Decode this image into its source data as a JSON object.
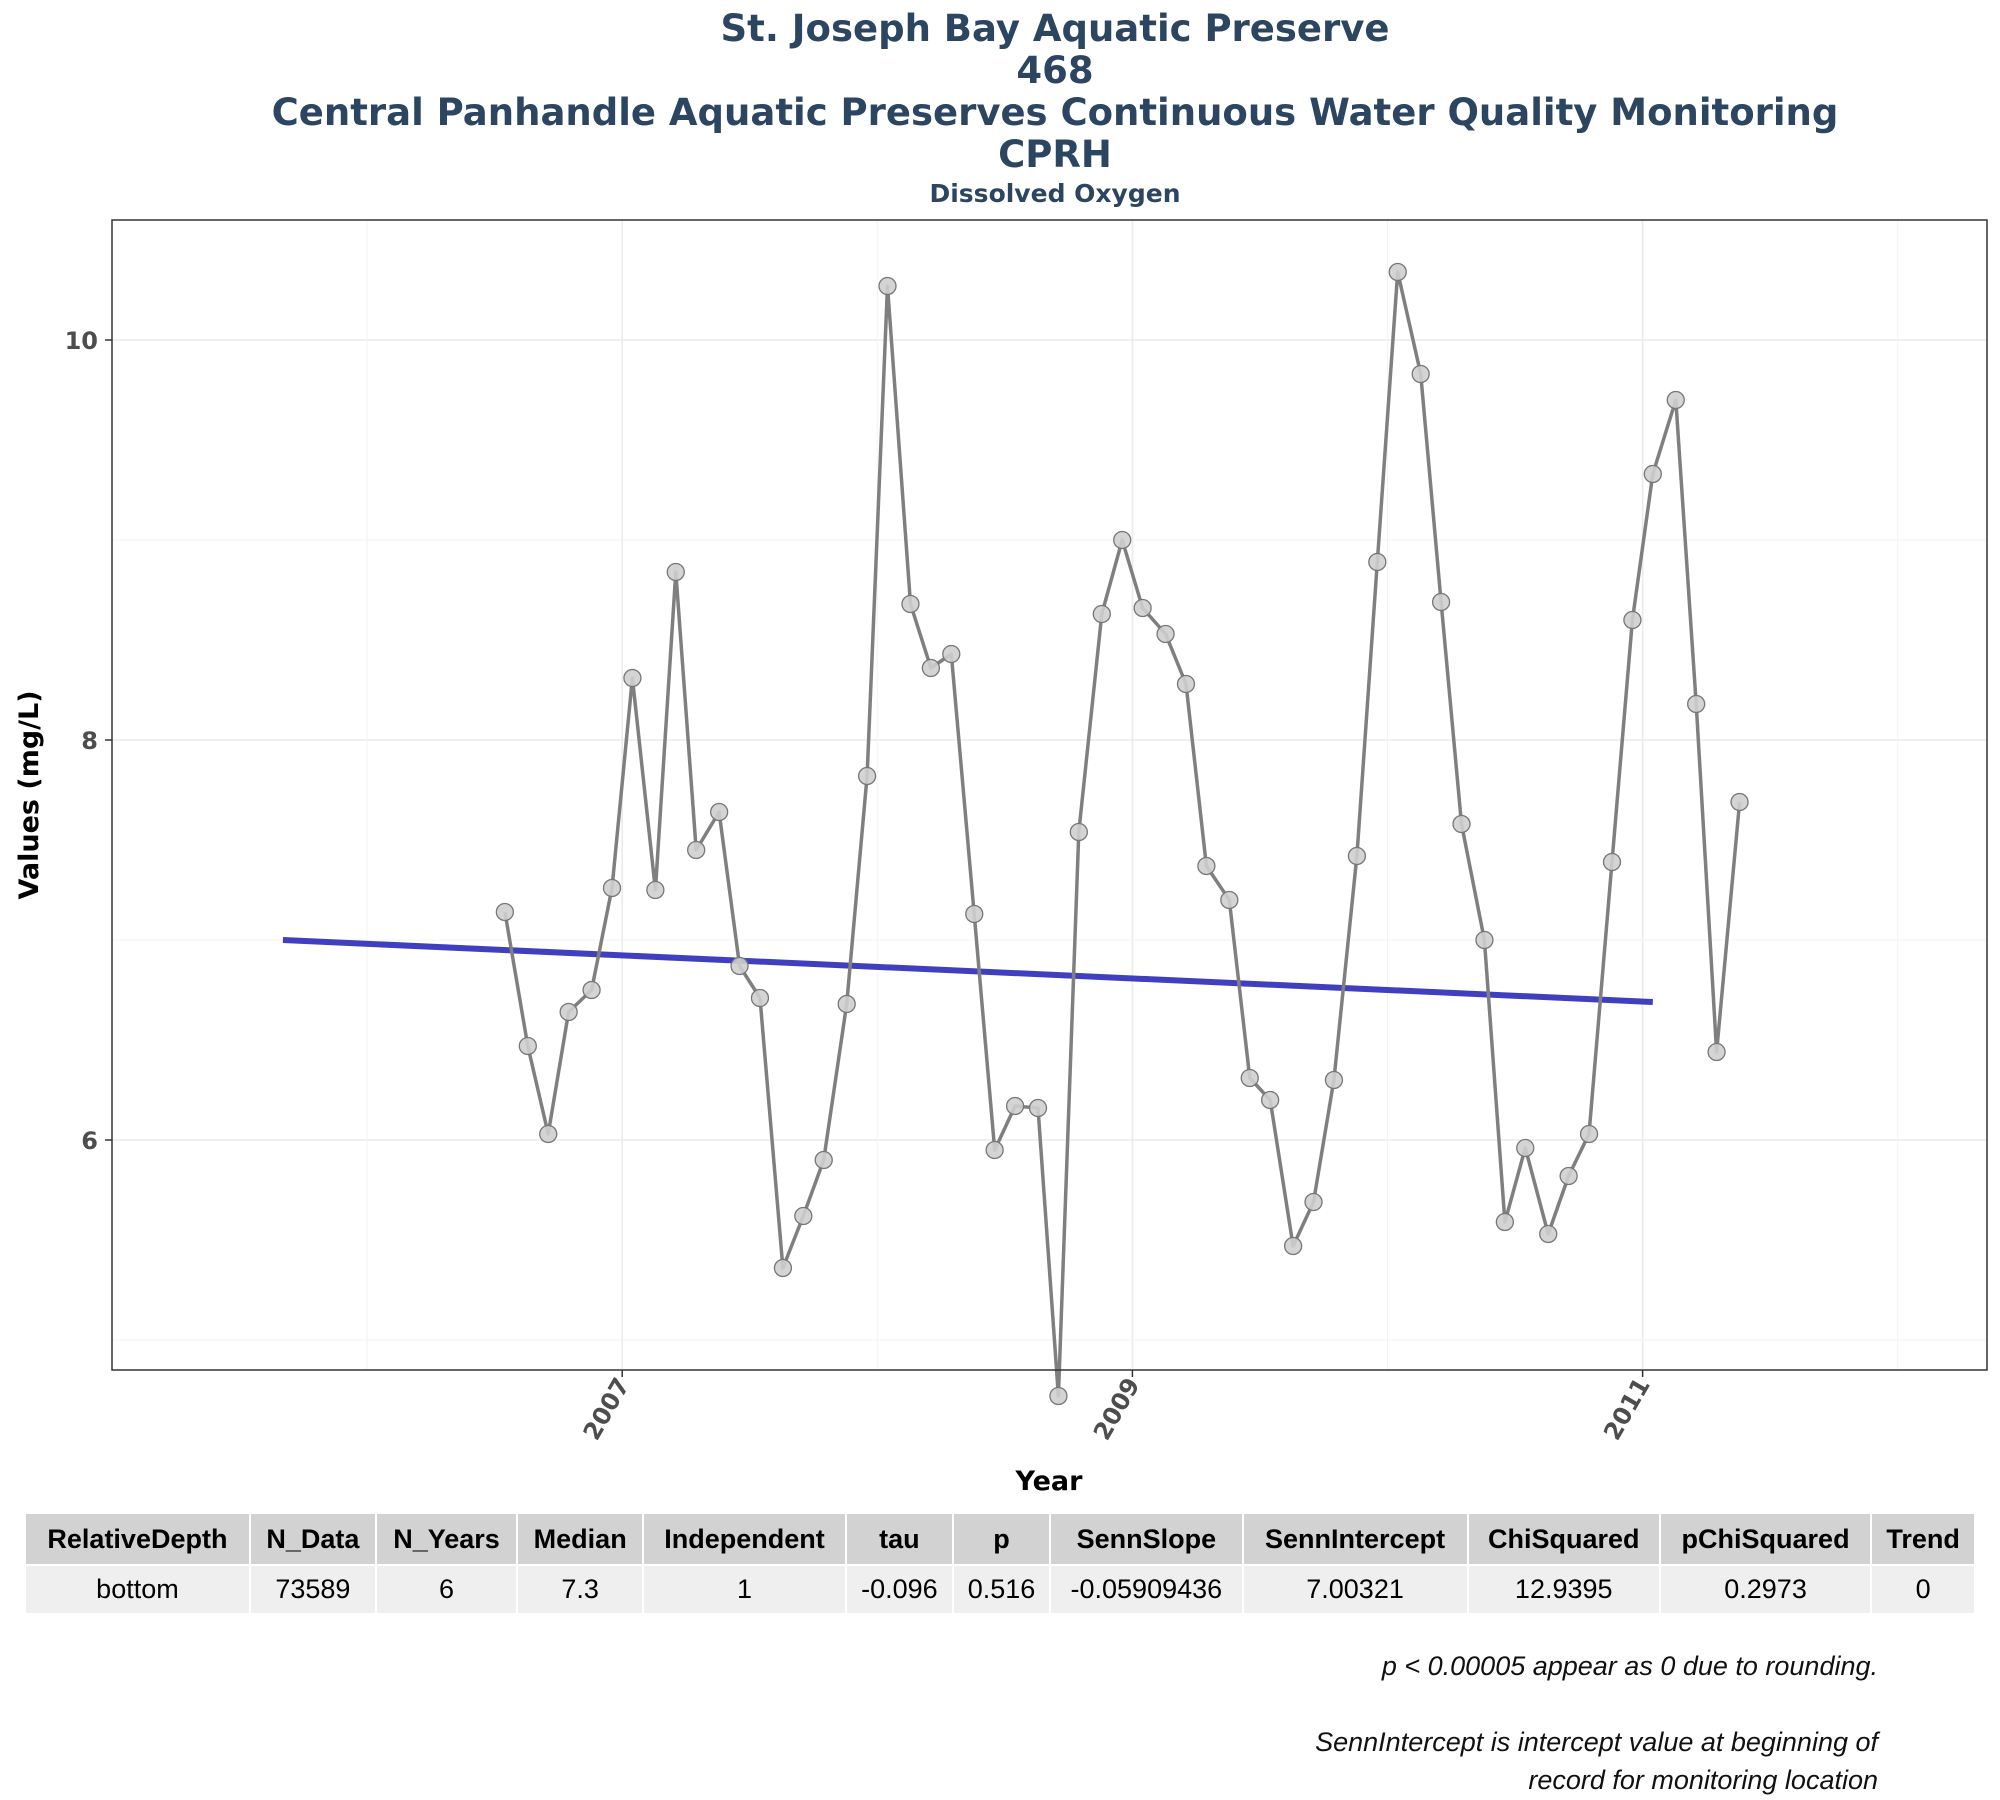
{
  "chart_data": {
    "type": "line",
    "title_lines": [
      "St. Joseph Bay Aquatic Preserve",
      "468",
      "Central Panhandle Aquatic Preserves Continuous Water Quality Monitoring",
      "CPRH"
    ],
    "subtitle": "Dissolved Oxygen",
    "xlabel": "Year",
    "ylabel": "Values (mg/L)",
    "xlim": [
      2005.0,
      2012.35
    ],
    "ylim": [
      4.85,
      10.6
    ],
    "x_ticks": [
      2007,
      2009,
      2011
    ],
    "y_ticks": [
      6,
      8,
      10
    ],
    "grid": true,
    "series": [
      {
        "values": [
          {
            "x": 2006.54,
            "y": 7.14
          },
          {
            "x": 2006.63,
            "y": 6.47
          },
          {
            "x": 2006.71,
            "y": 6.03
          },
          {
            "x": 2006.79,
            "y": 6.64
          },
          {
            "x": 2006.88,
            "y": 6.75
          },
          {
            "x": 2006.96,
            "y": 7.26
          },
          {
            "x": 2007.04,
            "y": 8.31
          },
          {
            "x": 2007.13,
            "y": 7.25
          },
          {
            "x": 2007.21,
            "y": 8.84
          },
          {
            "x": 2007.29,
            "y": 7.45
          },
          {
            "x": 2007.38,
            "y": 7.64
          },
          {
            "x": 2007.46,
            "y": 6.87
          },
          {
            "x": 2007.54,
            "y": 6.71
          },
          {
            "x": 2007.63,
            "y": 5.36
          },
          {
            "x": 2007.71,
            "y": 5.62
          },
          {
            "x": 2007.79,
            "y": 5.9
          },
          {
            "x": 2007.88,
            "y": 6.68
          },
          {
            "x": 2007.96,
            "y": 7.82
          },
          {
            "x": 2008.04,
            "y": 10.27
          },
          {
            "x": 2008.13,
            "y": 8.68
          },
          {
            "x": 2008.21,
            "y": 8.36
          },
          {
            "x": 2008.29,
            "y": 8.43
          },
          {
            "x": 2008.38,
            "y": 7.13
          },
          {
            "x": 2008.46,
            "y": 5.95
          },
          {
            "x": 2008.54,
            "y": 6.17
          },
          {
            "x": 2008.63,
            "y": 6.16
          },
          {
            "x": 2008.71,
            "y": 4.72
          },
          {
            "x": 2008.79,
            "y": 7.54
          },
          {
            "x": 2008.88,
            "y": 8.63
          },
          {
            "x": 2008.96,
            "y": 9.0
          },
          {
            "x": 2009.04,
            "y": 8.66
          },
          {
            "x": 2009.13,
            "y": 8.53
          },
          {
            "x": 2009.21,
            "y": 8.28
          },
          {
            "x": 2009.29,
            "y": 7.37
          },
          {
            "x": 2009.38,
            "y": 7.2
          },
          {
            "x": 2009.46,
            "y": 6.31
          },
          {
            "x": 2009.54,
            "y": 6.2
          },
          {
            "x": 2009.63,
            "y": 5.47
          },
          {
            "x": 2009.71,
            "y": 5.69
          },
          {
            "x": 2009.79,
            "y": 6.3
          },
          {
            "x": 2009.88,
            "y": 7.42
          },
          {
            "x": 2009.96,
            "y": 8.89
          },
          {
            "x": 2010.04,
            "y": 10.34
          },
          {
            "x": 2010.13,
            "y": 9.83
          },
          {
            "x": 2010.21,
            "y": 8.69
          },
          {
            "x": 2010.29,
            "y": 7.58
          },
          {
            "x": 2010.38,
            "y": 7.0
          },
          {
            "x": 2010.46,
            "y": 5.59
          },
          {
            "x": 2010.54,
            "y": 5.96
          },
          {
            "x": 2010.63,
            "y": 5.53
          },
          {
            "x": 2010.71,
            "y": 5.82
          },
          {
            "x": 2010.79,
            "y": 6.03
          },
          {
            "x": 2010.88,
            "y": 7.39
          },
          {
            "x": 2010.96,
            "y": 8.6
          },
          {
            "x": 2011.04,
            "y": 9.33
          },
          {
            "x": 2011.13,
            "y": 9.7
          },
          {
            "x": 2011.21,
            "y": 8.18
          },
          {
            "x": 2011.29,
            "y": 6.44
          },
          {
            "x": 2011.38,
            "y": 7.69
          }
        ]
      }
    ],
    "trend_line": [
      {
        "x": 2005.67,
        "y": 7.0
      },
      {
        "x": 2011.04,
        "y": 6.69
      }
    ],
    "colors": {
      "series": "#7f7f7f",
      "points": "#cfcfcf",
      "trend": "#3f3fbf",
      "grid": "#ebebeb",
      "frame": "#333333"
    }
  },
  "table": {
    "headers": [
      "RelativeDepth",
      "N_Data",
      "N_Years",
      "Median",
      "Independent",
      "tau",
      "p",
      "SennSlope",
      "SennIntercept",
      "ChiSquared",
      "pChiSquared",
      "Trend"
    ],
    "rows": [
      [
        "bottom",
        "73589",
        "6",
        "7.3",
        "1",
        "-0.096",
        "0.516",
        "-0.05909436",
        "7.00321",
        "12.9395",
        "0.2973",
        "0"
      ]
    ]
  },
  "notes": {
    "rounding": "p < 0.00005 appear as 0 due to rounding.",
    "intercept_line1": "SennIntercept is intercept value at beginning of",
    "intercept_line2": "record for monitoring location"
  }
}
